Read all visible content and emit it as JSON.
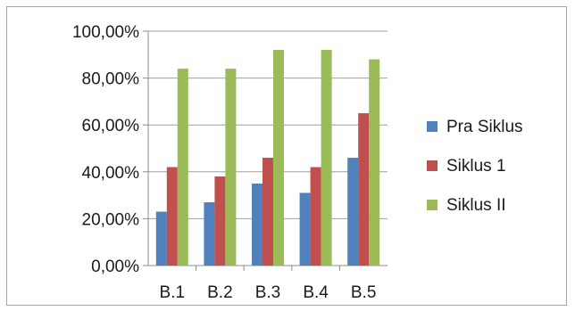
{
  "chart_data": {
    "type": "bar",
    "title": "",
    "xlabel": "",
    "ylabel": "",
    "categories": [
      "B.1",
      "B.2",
      "B.3",
      "B.4",
      "B.5"
    ],
    "series": [
      {
        "name": "Pra Siklus",
        "color": "#4f81bd",
        "values": [
          23,
          27,
          35,
          31,
          46
        ]
      },
      {
        "name": "Siklus 1",
        "color": "#c0504d",
        "values": [
          42,
          38,
          46,
          42,
          65
        ]
      },
      {
        "name": "Siklus II",
        "color": "#9bbb59",
        "values": [
          84,
          84,
          92,
          92,
          88
        ]
      }
    ],
    "ylim": [
      0,
      100
    ],
    "yticks": [
      "0,00%",
      "20,00%",
      "40,00%",
      "60,00%",
      "80,00%",
      "100,00%"
    ],
    "grid": true,
    "legend_position": "right"
  }
}
